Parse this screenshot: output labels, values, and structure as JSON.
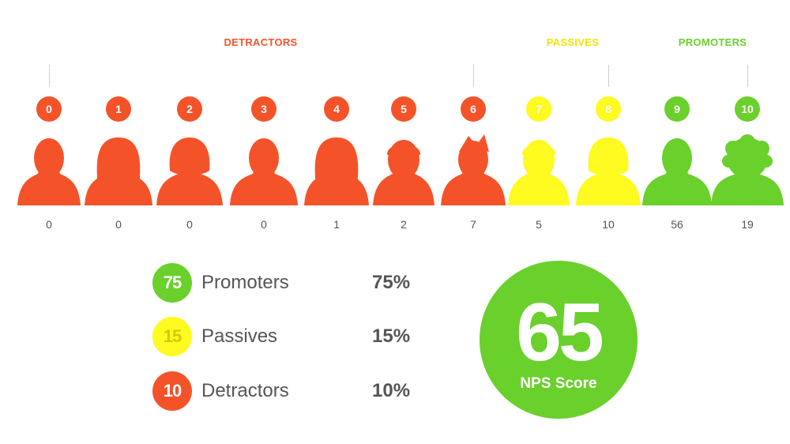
{
  "colors": {
    "detractor": "#f4532a",
    "passive": "#fffa1f",
    "promoter": "#6ad02c"
  },
  "groups": {
    "detractors": "DETRACTORS",
    "passives": "PASSIVES",
    "promoters": "PROMOTERS"
  },
  "chart_data": {
    "type": "bar",
    "categories": [
      "0",
      "1",
      "2",
      "3",
      "4",
      "5",
      "6",
      "7",
      "8",
      "9",
      "10"
    ],
    "values": [
      0,
      0,
      0,
      0,
      1,
      2,
      7,
      5,
      10,
      56,
      19
    ],
    "category_groups": [
      "detractor",
      "detractor",
      "detractor",
      "detractor",
      "detractor",
      "detractor",
      "detractor",
      "passive",
      "passive",
      "promoter",
      "promoter"
    ],
    "icons": [
      "person-male-icon",
      "person-female-long-hair-icon",
      "person-female-bob-icon",
      "person-male-icon",
      "person-female-long-hair-icon",
      "person-male-short-hair-icon",
      "person-male-spiky-hair-icon",
      "person-male-short-hair-icon",
      "person-female-bob-icon",
      "person-male-icon",
      "person-curly-hair-icon"
    ]
  },
  "summary": [
    {
      "key": "promoters",
      "count": "75",
      "name": "Promoters",
      "pct": "75%",
      "color": "#6ad02c",
      "text_color": "#ffffff"
    },
    {
      "key": "passives",
      "count": "15",
      "name": "Passives",
      "pct": "15%",
      "color": "#fffa1f",
      "text_color": "#d8c60a"
    },
    {
      "key": "detractors",
      "count": "10",
      "name": "Detractors",
      "pct": "10%",
      "color": "#f4532a",
      "text_color": "#ffffff"
    }
  ],
  "nps": {
    "value": "65",
    "caption": "NPS Score"
  }
}
